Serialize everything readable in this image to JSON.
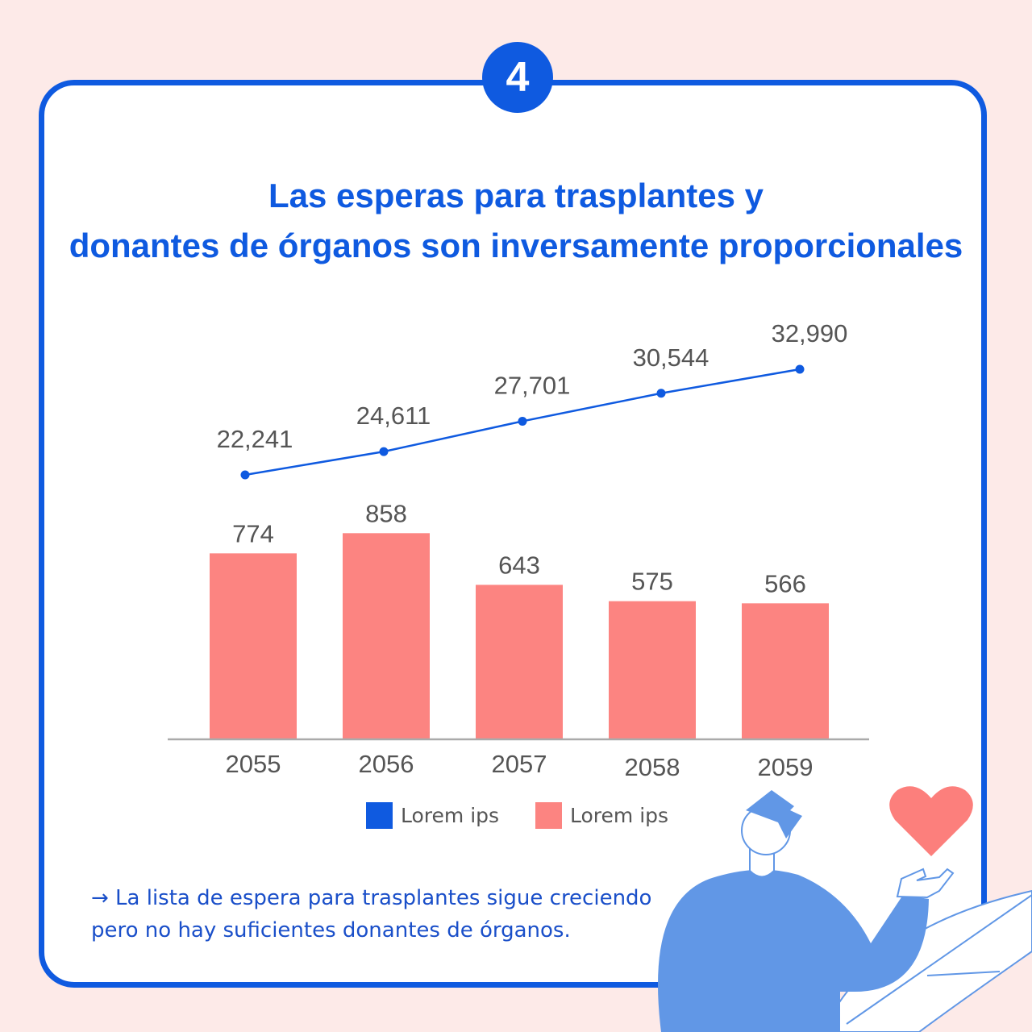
{
  "badge": "4",
  "title_line1": "Las esperas para trasplantes y",
  "title_line2": "donantes de órganos son inversamente proporcionales",
  "note_line1": "→ La lista de espera para trasplantes sigue creciendo",
  "note_line2": "pero no hay suficientes donantes de órganos.",
  "colors": {
    "accent": "#0f5ae0",
    "bar": "#fc8481",
    "line": "#1a56d6",
    "figure": "#6197e6",
    "heart": "#fc7f7c"
  },
  "chart_data": {
    "type": "bar",
    "title": "Las esperas para trasplantes y donantes de órganos son inversamente proporcionales",
    "categories": [
      "2055",
      "2056",
      "2057",
      "2058",
      "2059"
    ],
    "series": [
      {
        "name": "Lorem ips",
        "type": "line",
        "color": "#0f5ae0",
        "values": [
          22241,
          24611,
          27701,
          30544,
          32990
        ],
        "labels": [
          "22,241",
          "24,611",
          "27,701",
          "30,544",
          "32,990"
        ]
      },
      {
        "name": "Lorem ips",
        "type": "bar",
        "color": "#fc8481",
        "values": [
          774,
          858,
          643,
          575,
          566
        ],
        "labels": [
          "774",
          "858",
          "643",
          "575",
          "566"
        ]
      }
    ],
    "legend_position": "bottom",
    "grid": false
  }
}
